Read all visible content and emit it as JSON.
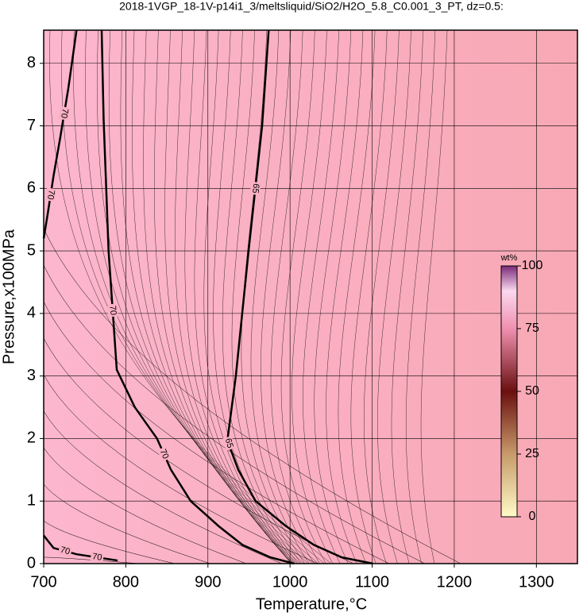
{
  "chart_data": {
    "type": "contour",
    "title": "2018-1VGP_18-1V-p14i1_3/meltsliquid/SiO2/H2O_5.8_C0.001_3_PT, dz=0.5:",
    "x_label": "Temperature,°C",
    "y_label": "Pressure,x100MPa",
    "xlim": [
      700,
      1350
    ],
    "ylim": [
      0,
      8.53
    ],
    "xticks": [
      700,
      800,
      900,
      1000,
      1100,
      1200,
      1300
    ],
    "yticks": [
      0,
      1,
      2,
      3,
      4,
      5,
      6,
      7,
      8
    ],
    "grid": true,
    "contours": [
      {
        "level": 70,
        "x": [
          770.6,
          773,
          779,
          789,
          811,
          838,
          855,
          879,
          913,
          942,
          976,
          1005
        ],
        "y": [
          8.53,
          7.1,
          5,
          3.1,
          2.5,
          2,
          1.5,
          1,
          0.6,
          0.3,
          0.1,
          0
        ]
      },
      {
        "level": 65,
        "x": [
          974,
          966,
          949.5,
          934,
          924,
          927,
          937,
          958,
          995,
          1029,
          1063,
          1101
        ],
        "y": [
          8.53,
          7,
          5,
          3,
          2,
          1.85,
          1.5,
          1,
          0.6,
          0.3,
          0.1,
          0
        ]
      },
      {
        "level": 70,
        "x": [
          740,
          730,
          720,
          712,
          705,
          700
        ],
        "y": [
          8.53,
          7.6,
          6.8,
          6.2,
          5.6,
          5.2
        ]
      },
      {
        "level": 70,
        "x": [
          700,
          712,
          740,
          790
        ],
        "y": [
          0.45,
          0.25,
          0.15,
          0.05
        ]
      }
    ],
    "colorbar": {
      "label": "wt%",
      "lim": [
        0,
        100
      ],
      "ticks": [
        0,
        25,
        50,
        75,
        100
      ]
    }
  }
}
